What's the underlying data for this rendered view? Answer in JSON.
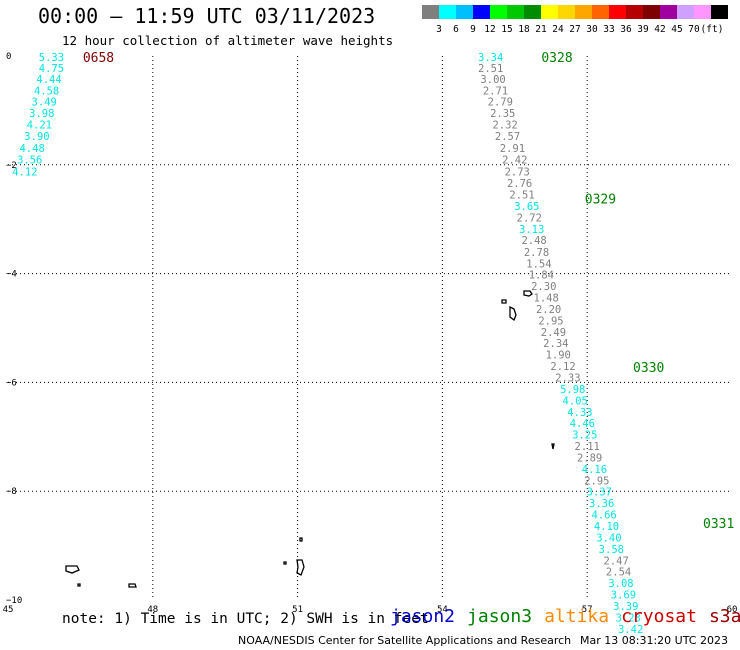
{
  "header": {
    "title": "00:00 — 11:59 UTC 03/11/2023",
    "subtitle": "12 hour collection of altimeter wave heights"
  },
  "color_scale": {
    "labels": [
      "3",
      "6",
      "9",
      "12",
      "15",
      "18",
      "21",
      "24",
      "27",
      "30",
      "33",
      "36",
      "39",
      "42",
      "45",
      "70"
    ],
    "unit": "(ft)",
    "colors": [
      "#7f7f7f",
      "#00ffff",
      "#00bfff",
      "#0000ff",
      "#00ff00",
      "#00c800",
      "#008c00",
      "#ffff00",
      "#ffd700",
      "#ffa500",
      "#ff6400",
      "#ff0000",
      "#b40000",
      "#7f0000",
      "#a000a0",
      "#d0a0ff",
      "#ff96ff",
      "#000000"
    ]
  },
  "axes": {
    "x_ticks": [
      "45",
      "48",
      "51",
      "54",
      "57",
      "60"
    ],
    "y_ticks": [
      "0",
      "−2",
      "−4",
      "−6",
      "−8",
      "−10"
    ]
  },
  "chart_data": {
    "type": "scatter",
    "x_unit": "longitude (deg E)",
    "y_unit": "latitude (deg)",
    "xlim": [
      45,
      60
    ],
    "ylim": [
      -10,
      0
    ],
    "grid": true,
    "pass_times": [
      {
        "label": "0658",
        "lon": 46.55,
        "lat": -0.02,
        "color": "#7f0000"
      },
      {
        "label": "0328",
        "lon": 56.05,
        "lat": -0.02,
        "color": "#008000"
      },
      {
        "label": "0329",
        "lon": 56.95,
        "lat": -2.62,
        "color": "#008000"
      },
      {
        "label": "0330",
        "lon": 57.95,
        "lat": -5.72,
        "color": "#008000"
      },
      {
        "label": "0331",
        "lon": 59.4,
        "lat": -8.58,
        "color": "#008000"
      }
    ],
    "tracks": [
      {
        "points": [
          {
            "lon": 45.9,
            "lat": -0.02,
            "swh": "5.33",
            "color": "#00e5e5"
          },
          {
            "lon": 45.9,
            "lat": -0.22,
            "swh": "4.75",
            "color": "#00e5e5"
          },
          {
            "lon": 45.85,
            "lat": -0.42,
            "swh": "4.44",
            "color": "#00e5e5"
          },
          {
            "lon": 45.8,
            "lat": -0.63,
            "swh": "4.58",
            "color": "#00e5e5"
          },
          {
            "lon": 45.75,
            "lat": -0.84,
            "swh": "3.49",
            "color": "#00e5e5"
          },
          {
            "lon": 45.7,
            "lat": -1.05,
            "swh": "3.98",
            "color": "#00e5e5"
          },
          {
            "lon": 45.65,
            "lat": -1.26,
            "swh": "4.21",
            "color": "#00e5e5"
          },
          {
            "lon": 45.6,
            "lat": -1.47,
            "swh": "3.90",
            "color": "#00e5e5"
          },
          {
            "lon": 45.5,
            "lat": -1.69,
            "swh": "4.48",
            "color": "#00e5e5"
          },
          {
            "lon": 45.45,
            "lat": -1.9,
            "swh": "3.56",
            "color": "#00e5e5"
          },
          {
            "lon": 45.35,
            "lat": -2.12,
            "swh": "4.12",
            "color": "#00e5e5"
          }
        ]
      },
      {
        "points": [
          {
            "lon": 55.0,
            "lat": -0.02,
            "swh": "3.34",
            "color": "#00e5e5"
          },
          {
            "lon": 55.0,
            "lat": -0.22,
            "swh": "2.51",
            "color": "#808080"
          },
          {
            "lon": 55.05,
            "lat": -0.42,
            "swh": "3.00",
            "color": "#808080"
          },
          {
            "lon": 55.1,
            "lat": -0.63,
            "swh": "2.71",
            "color": "#808080"
          },
          {
            "lon": 55.2,
            "lat": -0.84,
            "swh": "2.79",
            "color": "#808080"
          },
          {
            "lon": 55.25,
            "lat": -1.05,
            "swh": "2.35",
            "color": "#808080"
          },
          {
            "lon": 55.3,
            "lat": -1.26,
            "swh": "2.32",
            "color": "#808080"
          },
          {
            "lon": 55.35,
            "lat": -1.47,
            "swh": "2.57",
            "color": "#808080"
          },
          {
            "lon": 55.45,
            "lat": -1.69,
            "swh": "2.91",
            "color": "#808080"
          },
          {
            "lon": 55.5,
            "lat": -1.9,
            "swh": "2.42",
            "color": "#808080"
          },
          {
            "lon": 55.55,
            "lat": -2.12,
            "swh": "2.73",
            "color": "#808080"
          },
          {
            "lon": 55.6,
            "lat": -2.33,
            "swh": "2.76",
            "color": "#808080"
          },
          {
            "lon": 55.65,
            "lat": -2.55,
            "swh": "2.51",
            "color": "#808080"
          },
          {
            "lon": 55.75,
            "lat": -2.76,
            "swh": "3.65",
            "color": "#00e5e5"
          },
          {
            "lon": 55.8,
            "lat": -2.97,
            "swh": "2.72",
            "color": "#808080"
          },
          {
            "lon": 55.85,
            "lat": -3.18,
            "swh": "3.13",
            "color": "#00e5e5"
          },
          {
            "lon": 55.9,
            "lat": -3.38,
            "swh": "2.48",
            "color": "#808080"
          },
          {
            "lon": 55.95,
            "lat": -3.6,
            "swh": "2.78",
            "color": "#808080"
          },
          {
            "lon": 56.0,
            "lat": -3.81,
            "swh": "1.54",
            "color": "#808080"
          },
          {
            "lon": 56.05,
            "lat": -4.02,
            "swh": "1.84",
            "color": "#808080"
          },
          {
            "lon": 56.1,
            "lat": -4.23,
            "swh": "2.30",
            "color": "#808080"
          },
          {
            "lon": 56.15,
            "lat": -4.44,
            "swh": "1.48",
            "color": "#808080"
          },
          {
            "lon": 56.2,
            "lat": -4.65,
            "swh": "2.20",
            "color": "#808080"
          },
          {
            "lon": 56.25,
            "lat": -4.86,
            "swh": "2.95",
            "color": "#808080"
          },
          {
            "lon": 56.3,
            "lat": -5.07,
            "swh": "2.49",
            "color": "#808080"
          },
          {
            "lon": 56.35,
            "lat": -5.28,
            "swh": "2.34",
            "color": "#808080"
          },
          {
            "lon": 56.4,
            "lat": -5.49,
            "swh": "1.90",
            "color": "#808080"
          },
          {
            "lon": 56.5,
            "lat": -5.7,
            "swh": "2.12",
            "color": "#808080"
          },
          {
            "lon": 56.6,
            "lat": -5.91,
            "swh": "2.33",
            "color": "#808080"
          },
          {
            "lon": 56.7,
            "lat": -6.12,
            "swh": "5.98",
            "color": "#00e5e5"
          },
          {
            "lon": 56.75,
            "lat": -6.33,
            "swh": "4.05",
            "color": "#00e5e5"
          },
          {
            "lon": 56.85,
            "lat": -6.54,
            "swh": "4.33",
            "color": "#00e5e5"
          },
          {
            "lon": 56.9,
            "lat": -6.75,
            "swh": "4.46",
            "color": "#00e5e5"
          },
          {
            "lon": 56.95,
            "lat": -6.96,
            "swh": "3.25",
            "color": "#00e5e5"
          },
          {
            "lon": 57.0,
            "lat": -7.17,
            "swh": "2.11",
            "color": "#808080"
          },
          {
            "lon": 57.05,
            "lat": -7.38,
            "swh": "2.89",
            "color": "#808080"
          },
          {
            "lon": 57.15,
            "lat": -7.59,
            "swh": "4.16",
            "color": "#00e5e5"
          },
          {
            "lon": 57.2,
            "lat": -7.8,
            "swh": "2.95",
            "color": "#808080"
          },
          {
            "lon": 57.25,
            "lat": -8.01,
            "swh": "3.37",
            "color": "#00e5e5"
          },
          {
            "lon": 57.3,
            "lat": -8.22,
            "swh": "3.36",
            "color": "#00e5e5"
          },
          {
            "lon": 57.35,
            "lat": -8.43,
            "swh": "4.66",
            "color": "#00e5e5"
          },
          {
            "lon": 57.4,
            "lat": -8.64,
            "swh": "4.10",
            "color": "#00e5e5"
          },
          {
            "lon": 57.45,
            "lat": -8.85,
            "swh": "3.40",
            "color": "#00e5e5"
          },
          {
            "lon": 57.5,
            "lat": -9.06,
            "swh": "3.58",
            "color": "#00e5e5"
          },
          {
            "lon": 57.6,
            "lat": -9.27,
            "swh": "2.47",
            "color": "#808080"
          },
          {
            "lon": 57.65,
            "lat": -9.48,
            "swh": "2.54",
            "color": "#808080"
          },
          {
            "lon": 57.7,
            "lat": -9.69,
            "swh": "3.08",
            "color": "#00e5e5"
          },
          {
            "lon": 57.75,
            "lat": -9.9,
            "swh": "3.69",
            "color": "#00e5e5"
          },
          {
            "lon": 57.8,
            "lat": -10.11,
            "swh": "3.39",
            "color": "#00e5e5"
          },
          {
            "lon": 57.85,
            "lat": -10.32,
            "swh": "3.23",
            "color": "#00e5e5"
          },
          {
            "lon": 57.9,
            "lat": -10.53,
            "swh": "3.42",
            "color": "#00e5e5"
          }
        ]
      }
    ]
  },
  "footer": {
    "note": "note: 1) Time is in UTC; 2) SWH is in feet",
    "satellites": [
      {
        "name": "jason2",
        "color": "#0000cc"
      },
      {
        "name": "jason3",
        "color": "#008000"
      },
      {
        "name": "altika",
        "color": "#ff8c00"
      },
      {
        "name": "cryosat",
        "color": "#cc0000"
      },
      {
        "name": "s3a",
        "color": "#990000"
      }
    ],
    "credit": "NOAA/NESDIS Center for Satellite Applications and Research",
    "timestamp": "Mar 13 08:31:20 UTC 2023"
  }
}
